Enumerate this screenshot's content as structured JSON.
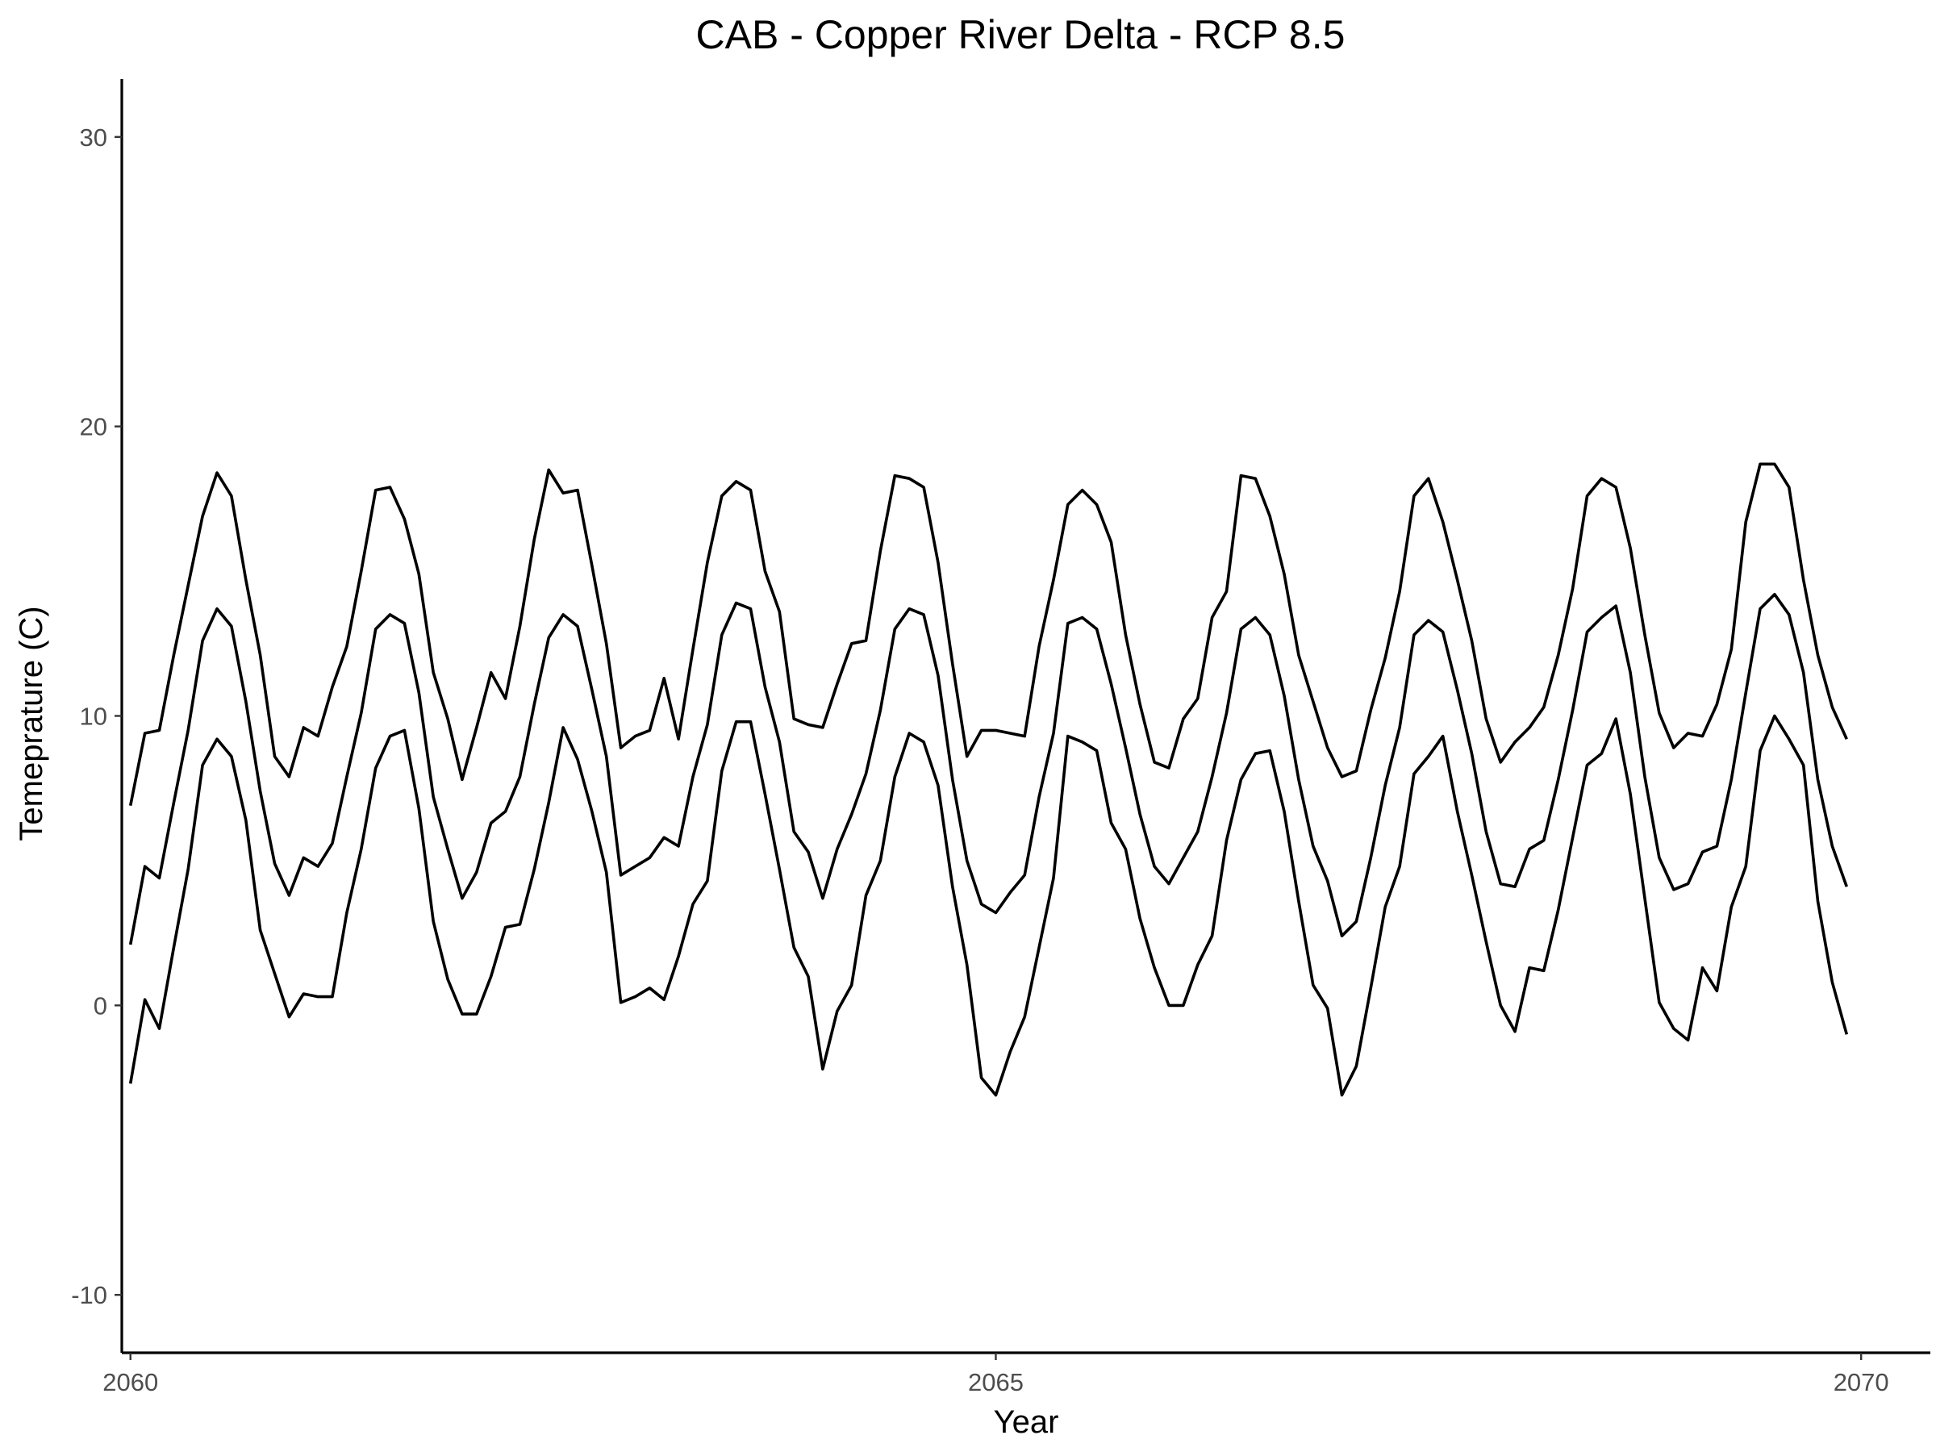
{
  "chart_data": {
    "type": "line",
    "title": "CAB - Copper River Delta - RCP 8.5",
    "xlabel": "Year",
    "ylabel": "Temeprature (C)",
    "xlim": [
      2059.95,
      2070.4
    ],
    "ylim": [
      -12,
      32
    ],
    "xticks": [
      2060,
      2065,
      2070
    ],
    "yticks": [
      -10,
      0,
      10,
      20,
      30
    ],
    "xtick_labels": [
      "2060",
      "2065",
      "2070"
    ],
    "ytick_labels": [
      "-10",
      "0",
      "10",
      "20",
      "30"
    ],
    "grid": false,
    "legend": "none",
    "x_start": 2060.0,
    "x_step_months": 1,
    "series": [
      {
        "values": [
          6.9,
          9.4,
          9.5,
          12.1,
          14.5,
          16.9,
          18.4,
          17.6,
          14.7,
          12.1,
          8.6,
          7.9,
          9.6,
          9.3,
          11.0,
          12.4,
          15.0,
          17.8,
          17.9,
          16.8,
          14.9,
          11.5,
          9.9,
          7.8,
          9.6,
          11.5,
          10.6,
          13.1,
          16.1,
          18.5,
          17.7,
          17.8,
          15.2,
          12.5,
          8.9,
          9.3,
          9.5,
          11.3,
          9.2,
          12.3,
          15.3,
          17.6,
          18.1,
          17.8,
          15.0,
          13.6,
          9.9,
          9.7,
          9.6,
          11.1,
          12.5,
          12.6,
          15.7,
          18.3,
          18.2,
          17.9,
          15.3,
          11.8,
          8.6,
          9.5,
          9.5,
          9.4,
          9.3,
          12.4,
          14.7,
          17.3,
          17.8,
          17.3,
          16.0,
          12.8,
          10.4,
          8.4,
          8.2,
          9.9,
          10.6,
          13.4,
          14.3,
          18.3,
          18.2,
          16.9,
          14.9,
          12.1,
          10.5,
          8.9,
          7.9,
          8.1,
          10.2,
          12.0,
          14.3,
          17.6,
          18.2,
          16.7,
          14.7,
          12.6,
          9.9,
          8.4,
          9.1,
          9.6,
          10.3,
          12.1,
          14.4,
          17.6,
          18.2,
          17.9,
          15.8,
          12.8,
          10.1,
          8.9,
          9.4,
          9.3,
          10.4,
          12.3,
          16.7,
          18.7,
          18.7,
          17.9,
          14.7,
          12.1,
          10.3,
          9.2
        ]
      },
      {
        "values": [
          2.1,
          4.8,
          4.4,
          7.0,
          9.5,
          12.6,
          13.7,
          13.1,
          10.5,
          7.4,
          4.9,
          3.8,
          5.1,
          4.8,
          5.6,
          7.9,
          10.1,
          13.0,
          13.5,
          13.2,
          10.8,
          7.2,
          5.4,
          3.7,
          4.6,
          6.3,
          6.7,
          7.9,
          10.4,
          12.7,
          13.5,
          13.1,
          10.9,
          8.6,
          4.5,
          4.8,
          5.1,
          5.8,
          5.5,
          7.9,
          9.7,
          12.8,
          13.9,
          13.7,
          11.0,
          9.1,
          6.0,
          5.3,
          3.7,
          5.4,
          6.6,
          8.0,
          10.2,
          13.0,
          13.7,
          13.5,
          11.4,
          7.8,
          5.0,
          3.5,
          3.2,
          3.9,
          4.5,
          7.2,
          9.4,
          13.2,
          13.4,
          13.0,
          11.1,
          8.9,
          6.6,
          4.8,
          4.2,
          5.1,
          6.0,
          7.9,
          10.1,
          13.0,
          13.4,
          12.8,
          10.7,
          7.8,
          5.5,
          4.3,
          2.4,
          2.9,
          5.1,
          7.6,
          9.6,
          12.8,
          13.3,
          12.9,
          10.9,
          8.7,
          6.0,
          4.2,
          4.1,
          5.4,
          5.7,
          7.8,
          10.2,
          12.9,
          13.4,
          13.8,
          11.5,
          7.9,
          5.1,
          4.0,
          4.2,
          5.3,
          5.5,
          7.8,
          10.8,
          13.7,
          14.2,
          13.5,
          11.5,
          7.8,
          5.5,
          4.1
        ]
      },
      {
        "values": [
          -2.7,
          0.2,
          -0.8,
          2.0,
          4.7,
          8.3,
          9.2,
          8.6,
          6.4,
          2.6,
          1.1,
          -0.4,
          0.4,
          0.3,
          0.3,
          3.2,
          5.4,
          8.2,
          9.3,
          9.5,
          6.8,
          2.9,
          0.9,
          -0.3,
          -0.3,
          1.0,
          2.7,
          2.8,
          4.7,
          7.0,
          9.6,
          8.5,
          6.7,
          4.6,
          0.1,
          0.3,
          0.6,
          0.2,
          1.7,
          3.5,
          4.3,
          8.1,
          9.8,
          9.8,
          7.3,
          4.7,
          2.0,
          1.0,
          -2.2,
          -0.2,
          0.7,
          3.8,
          5.0,
          7.9,
          9.4,
          9.1,
          7.6,
          4.1,
          1.4,
          -2.5,
          -3.1,
          -1.6,
          -0.4,
          2.0,
          4.4,
          9.3,
          9.1,
          8.8,
          6.3,
          5.4,
          3.0,
          1.3,
          0.0,
          0.0,
          1.4,
          2.4,
          5.7,
          7.8,
          8.7,
          8.8,
          6.7,
          3.6,
          0.7,
          -0.1,
          -3.1,
          -2.1,
          0.6,
          3.4,
          4.8,
          8.0,
          8.6,
          9.3,
          6.7,
          4.5,
          2.2,
          0.0,
          -0.9,
          1.3,
          1.2,
          3.3,
          5.8,
          8.3,
          8.7,
          9.9,
          7.3,
          3.7,
          0.1,
          -0.8,
          -1.2,
          1.3,
          0.5,
          3.4,
          4.8,
          8.8,
          10.0,
          9.2,
          8.3,
          3.6,
          0.8,
          -1.0
        ]
      }
    ]
  }
}
